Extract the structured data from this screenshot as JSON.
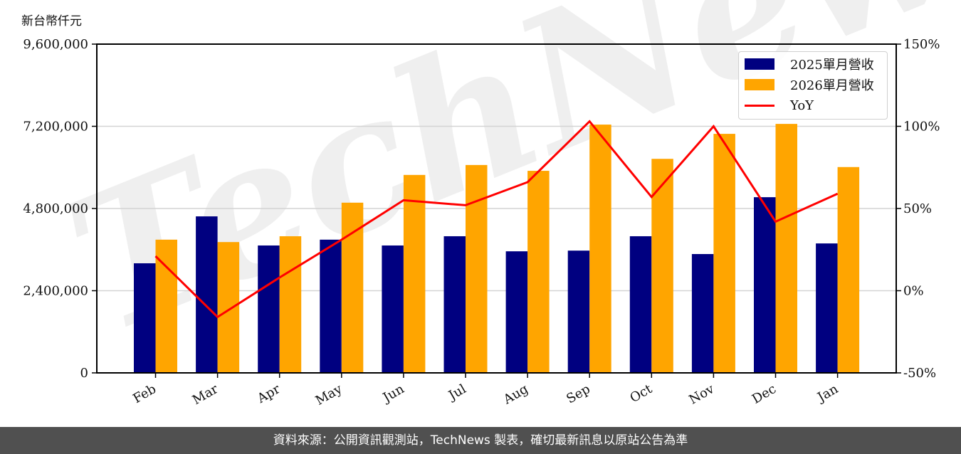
{
  "chart_data": {
    "type": "bar+line",
    "title": "",
    "ylabel": "新台幣仟元",
    "y2label": "",
    "xlabel": "",
    "categories": [
      "Feb",
      "Mar",
      "Apr",
      "May",
      "Jun",
      "Jul",
      "Aug",
      "Sep",
      "Oct",
      "Nov",
      "Dec",
      "Jan"
    ],
    "series": [
      {
        "name": "2025單月營收",
        "type": "bar",
        "axis": "left",
        "color": "#000080",
        "values": [
          3200000,
          4570000,
          3720000,
          3890000,
          3720000,
          3990000,
          3550000,
          3570000,
          3990000,
          3470000,
          5130000,
          3780000
        ]
      },
      {
        "name": "2026單月營收",
        "type": "bar",
        "axis": "left",
        "color": "#FFA500",
        "values": [
          3890000,
          3820000,
          3990000,
          4970000,
          5780000,
          6070000,
          5900000,
          7250000,
          6250000,
          6980000,
          7270000,
          6010000
        ]
      },
      {
        "name": "YoY",
        "type": "line",
        "axis": "right",
        "color": "#FF0000",
        "values": [
          21,
          -16,
          8,
          31,
          55,
          52,
          66,
          103,
          57,
          100,
          42,
          59
        ]
      }
    ],
    "ylim": [
      0,
      9600000
    ],
    "y_ticks": [
      0,
      2400000,
      4800000,
      7200000,
      9600000
    ],
    "y_tick_labels": [
      "0",
      "2,400,000",
      "4,800,000",
      "7,200,000",
      "9,600,000"
    ],
    "y2lim": [
      -50,
      150
    ],
    "y2_ticks": [
      -50,
      0,
      50,
      100,
      150
    ],
    "y2_tick_labels": [
      "-50%",
      "0%",
      "50%",
      "100%",
      "150%"
    ],
    "grid": true,
    "legend_position": "upper right",
    "watermark": "TechNews"
  },
  "header": {
    "unit_label": "新台幣仟元"
  },
  "legend": {
    "items": [
      {
        "label": "2025單月營收",
        "kind": "bar",
        "color": "#000080"
      },
      {
        "label": "2026單月營收",
        "kind": "bar",
        "color": "#FFA500"
      },
      {
        "label": "YoY",
        "kind": "line",
        "color": "#FF0000"
      }
    ]
  },
  "footer": {
    "text": "資料來源：公開資訊觀測站，TechNews 製表，確切最新訊息以原站公告為準"
  },
  "colors": {
    "bar_2025": "#000080",
    "bar_2026": "#FFA500",
    "yoy_line": "#FF0000",
    "footer_bg": "#505050",
    "grid": "#d3d3d3"
  }
}
